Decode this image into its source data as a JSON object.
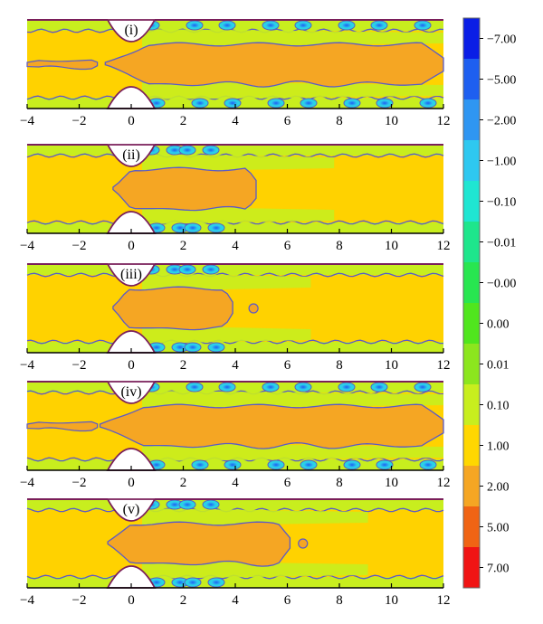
{
  "chart_data": {
    "type": "heatmap",
    "description_in_picture": "",
    "x_range": [
      -4,
      12
    ],
    "x_ticks": [
      -4,
      -2,
      0,
      2,
      4,
      6,
      8,
      10,
      12
    ],
    "x_tick_labels": [
      "−4",
      "−2",
      "0",
      "2",
      "4",
      "6",
      "8",
      "10",
      "12"
    ],
    "colorbar": {
      "levels": [
        "−7.00",
        "−5.00",
        "−2.00",
        "−1.00",
        "−0.10",
        "−0.01",
        "−0.00",
        "0.00",
        "0.01",
        "0.10",
        "1.00",
        "2.00",
        "5.00",
        "7.00"
      ],
      "colors": [
        "#0a1ee6",
        "#1e5ff0",
        "#2f96f2",
        "#2ec8f0",
        "#1fe6d2",
        "#1ee68c",
        "#28e650",
        "#50e61e",
        "#8ce61e",
        "#c8ee1e",
        "#ffd700",
        "#f5a623",
        "#f06414",
        "#f01414"
      ]
    },
    "panels": [
      {
        "label": "(i)",
        "core_start": -1.0,
        "core_end": 12.0,
        "upstream_core": true,
        "detached_blob": null
      },
      {
        "label": "(ii)",
        "core_start": -0.7,
        "core_end": 4.8,
        "upstream_core": false,
        "detached_blob": null
      },
      {
        "label": "(iii)",
        "core_start": -0.7,
        "core_end": 3.9,
        "upstream_core": false,
        "detached_blob": 4.7
      },
      {
        "label": "(iv)",
        "core_start": -1.2,
        "core_end": 12.0,
        "upstream_core": true,
        "detached_blob": null
      },
      {
        "label": "(v)",
        "core_start": -0.9,
        "core_end": 6.1,
        "upstream_core": false,
        "detached_blob": 6.6
      }
    ]
  }
}
